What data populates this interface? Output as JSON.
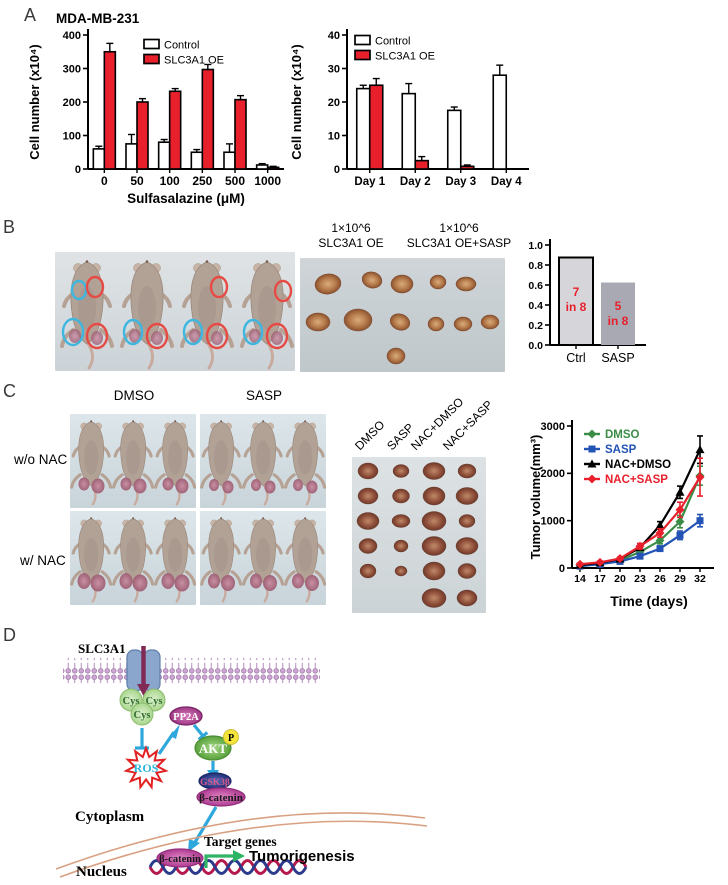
{
  "figure": {
    "panel_a": {
      "label": "A",
      "title": "MDA-MB-231"
    },
    "panel_b": {
      "label": "B",
      "group1_line1": "1×10^6",
      "group1_line2": "SLC3A1 OE",
      "group2_line1": "1×10^6",
      "group2_line2": "SLC3A1 OE+SASP"
    },
    "panel_c": {
      "label": "C",
      "col1": "DMSO",
      "col2": "SASP",
      "row1": "w/o NAC",
      "row2": "w/ NAC",
      "tumor_cols": [
        "DMSO",
        "SASP",
        "NAC+DMSO",
        "NAC+SASP"
      ]
    },
    "panel_d": {
      "label": "D",
      "membrane_protein": "SLC3A1",
      "cys1": "Cys",
      "cys2": "Cys",
      "cys3": "Cys",
      "pp2a": "PP2A",
      "akt": "AKT",
      "p": "P",
      "ros": "ROS",
      "gsk3b": "GSK3β",
      "bcatenin_cyto": "β-catenin",
      "cytoplasm": "Cytoplasm",
      "nucleus": "Nucleus",
      "target_genes": "Target genes",
      "bcatenin_nuc": "β-catenin",
      "tumorigenesis": "Tumorigenesis"
    },
    "colors": {
      "bar_red": "#e8202c",
      "circle_cyan": "#3db7e0",
      "circle_red": "#e74a44",
      "arrow_blue": "#2ea7dd",
      "arrow_green": "#2db563"
    }
  },
  "chart_data": [
    {
      "name": "a1",
      "type": "bar",
      "title": "MDA-MB-231",
      "categories": [
        "0",
        "50",
        "100",
        "250",
        "500",
        "1000"
      ],
      "xlabel": "Sulfasalazine (μM)",
      "ylabel": "Cell number (x10⁴)",
      "ylim": [
        0,
        400
      ],
      "yticks": [
        0,
        100,
        200,
        300,
        400
      ],
      "legend_position": "top-right",
      "grid": false,
      "series": [
        {
          "name": "Control",
          "color": "#ffffff",
          "values": [
            60,
            75,
            80,
            50,
            50,
            12
          ],
          "errors": [
            8,
            28,
            8,
            8,
            25,
            4
          ]
        },
        {
          "name": "SLC3A1 OE",
          "color": "#e8202c",
          "values": [
            350,
            200,
            232,
            297,
            207,
            5
          ],
          "errors": [
            25,
            10,
            8,
            15,
            12,
            3
          ]
        }
      ]
    },
    {
      "name": "a2",
      "type": "bar",
      "categories": [
        "Day 1",
        "Day 2",
        "Day 3",
        "Day 4"
      ],
      "xlabel": "",
      "ylabel": "Cell number (x10⁴)",
      "ylim": [
        0,
        40
      ],
      "yticks": [
        0,
        10,
        20,
        30,
        40
      ],
      "legend_position": "top-left",
      "grid": false,
      "series": [
        {
          "name": "Control",
          "color": "#ffffff",
          "values": [
            24,
            22.5,
            17.5,
            28
          ],
          "errors": [
            1,
            3,
            1,
            3
          ]
        },
        {
          "name": "SLC3A1 OE",
          "color": "#e8202c",
          "values": [
            25,
            2.5,
            0.8,
            0
          ],
          "errors": [
            2,
            1.2,
            0.4,
            0
          ]
        }
      ]
    },
    {
      "name": "b",
      "type": "bar",
      "categories": [
        "Ctrl",
        "SASP"
      ],
      "values": [
        0.875,
        0.625
      ],
      "ylim": [
        0,
        1
      ],
      "yticks": [
        0,
        0.2,
        0.4,
        0.6,
        0.8,
        1
      ],
      "bar_fills": [
        "#d6d6da",
        "#a9a9b3"
      ],
      "bar_strokes": [
        "#000000",
        "none"
      ],
      "bar_labels": [
        [
          "7",
          "in 8"
        ],
        [
          "5",
          "in 8"
        ]
      ],
      "bar_label_color": "#e8202c"
    },
    {
      "name": "c",
      "type": "line",
      "x": [
        14,
        17,
        20,
        23,
        26,
        29,
        32
      ],
      "xlabel": "Time (days)",
      "ylabel": "Tumor volume(mm³)",
      "ylim": [
        0,
        3000
      ],
      "yticks": [
        0,
        1000,
        2000,
        3000
      ],
      "legend_position": "top-left",
      "grid": false,
      "series": [
        {
          "name": "DMSO",
          "color": "#3a8c46",
          "marker": "diamond",
          "values": [
            50,
            90,
            160,
            340,
            580,
            980,
            1950
          ],
          "errors": [
            15,
            20,
            25,
            45,
            70,
            130,
            200
          ]
        },
        {
          "name": "SASP",
          "color": "#2353b5",
          "marker": "square",
          "values": [
            40,
            80,
            140,
            250,
            410,
            690,
            1000
          ],
          "errors": [
            10,
            15,
            20,
            30,
            45,
            90,
            130
          ]
        },
        {
          "name": "NAC+DMSO",
          "color": "#000000",
          "marker": "triangle",
          "values": [
            60,
            110,
            190,
            430,
            900,
            1600,
            2500
          ],
          "errors": [
            15,
            20,
            30,
            50,
            80,
            130,
            290
          ]
        },
        {
          "name": "NAC+SASP",
          "color": "#e8202c",
          "marker": "diamond",
          "values": [
            80,
            120,
            200,
            460,
            740,
            1230,
            1920
          ],
          "errors": [
            20,
            25,
            30,
            60,
            90,
            160,
            400
          ]
        }
      ]
    }
  ]
}
